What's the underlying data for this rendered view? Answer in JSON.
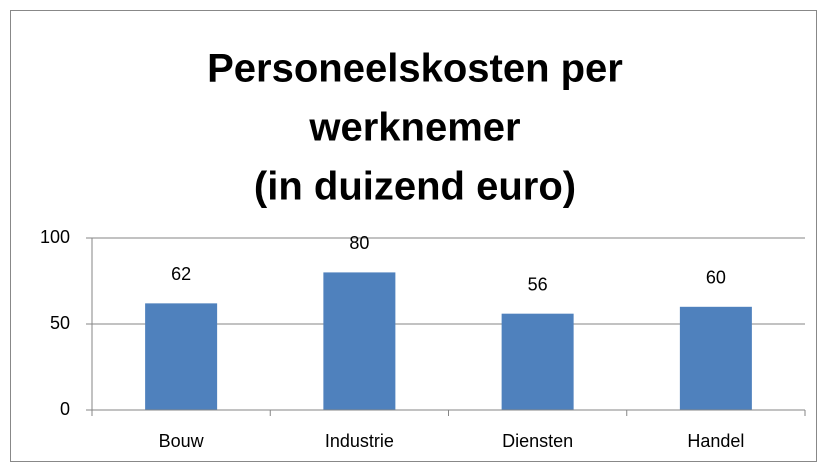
{
  "chart_data": {
    "type": "bar",
    "title": [
      "Personeelskosten per",
      "werknemer",
      "(in duizend euro)"
    ],
    "categories": [
      "Bouw",
      "Industrie",
      "Diensten",
      "Handel"
    ],
    "values": [
      62,
      80,
      56,
      60
    ],
    "color": "#4f81bd",
    "ylim": [
      0,
      100
    ],
    "yticks": [
      0,
      50,
      100
    ],
    "grid": true
  }
}
